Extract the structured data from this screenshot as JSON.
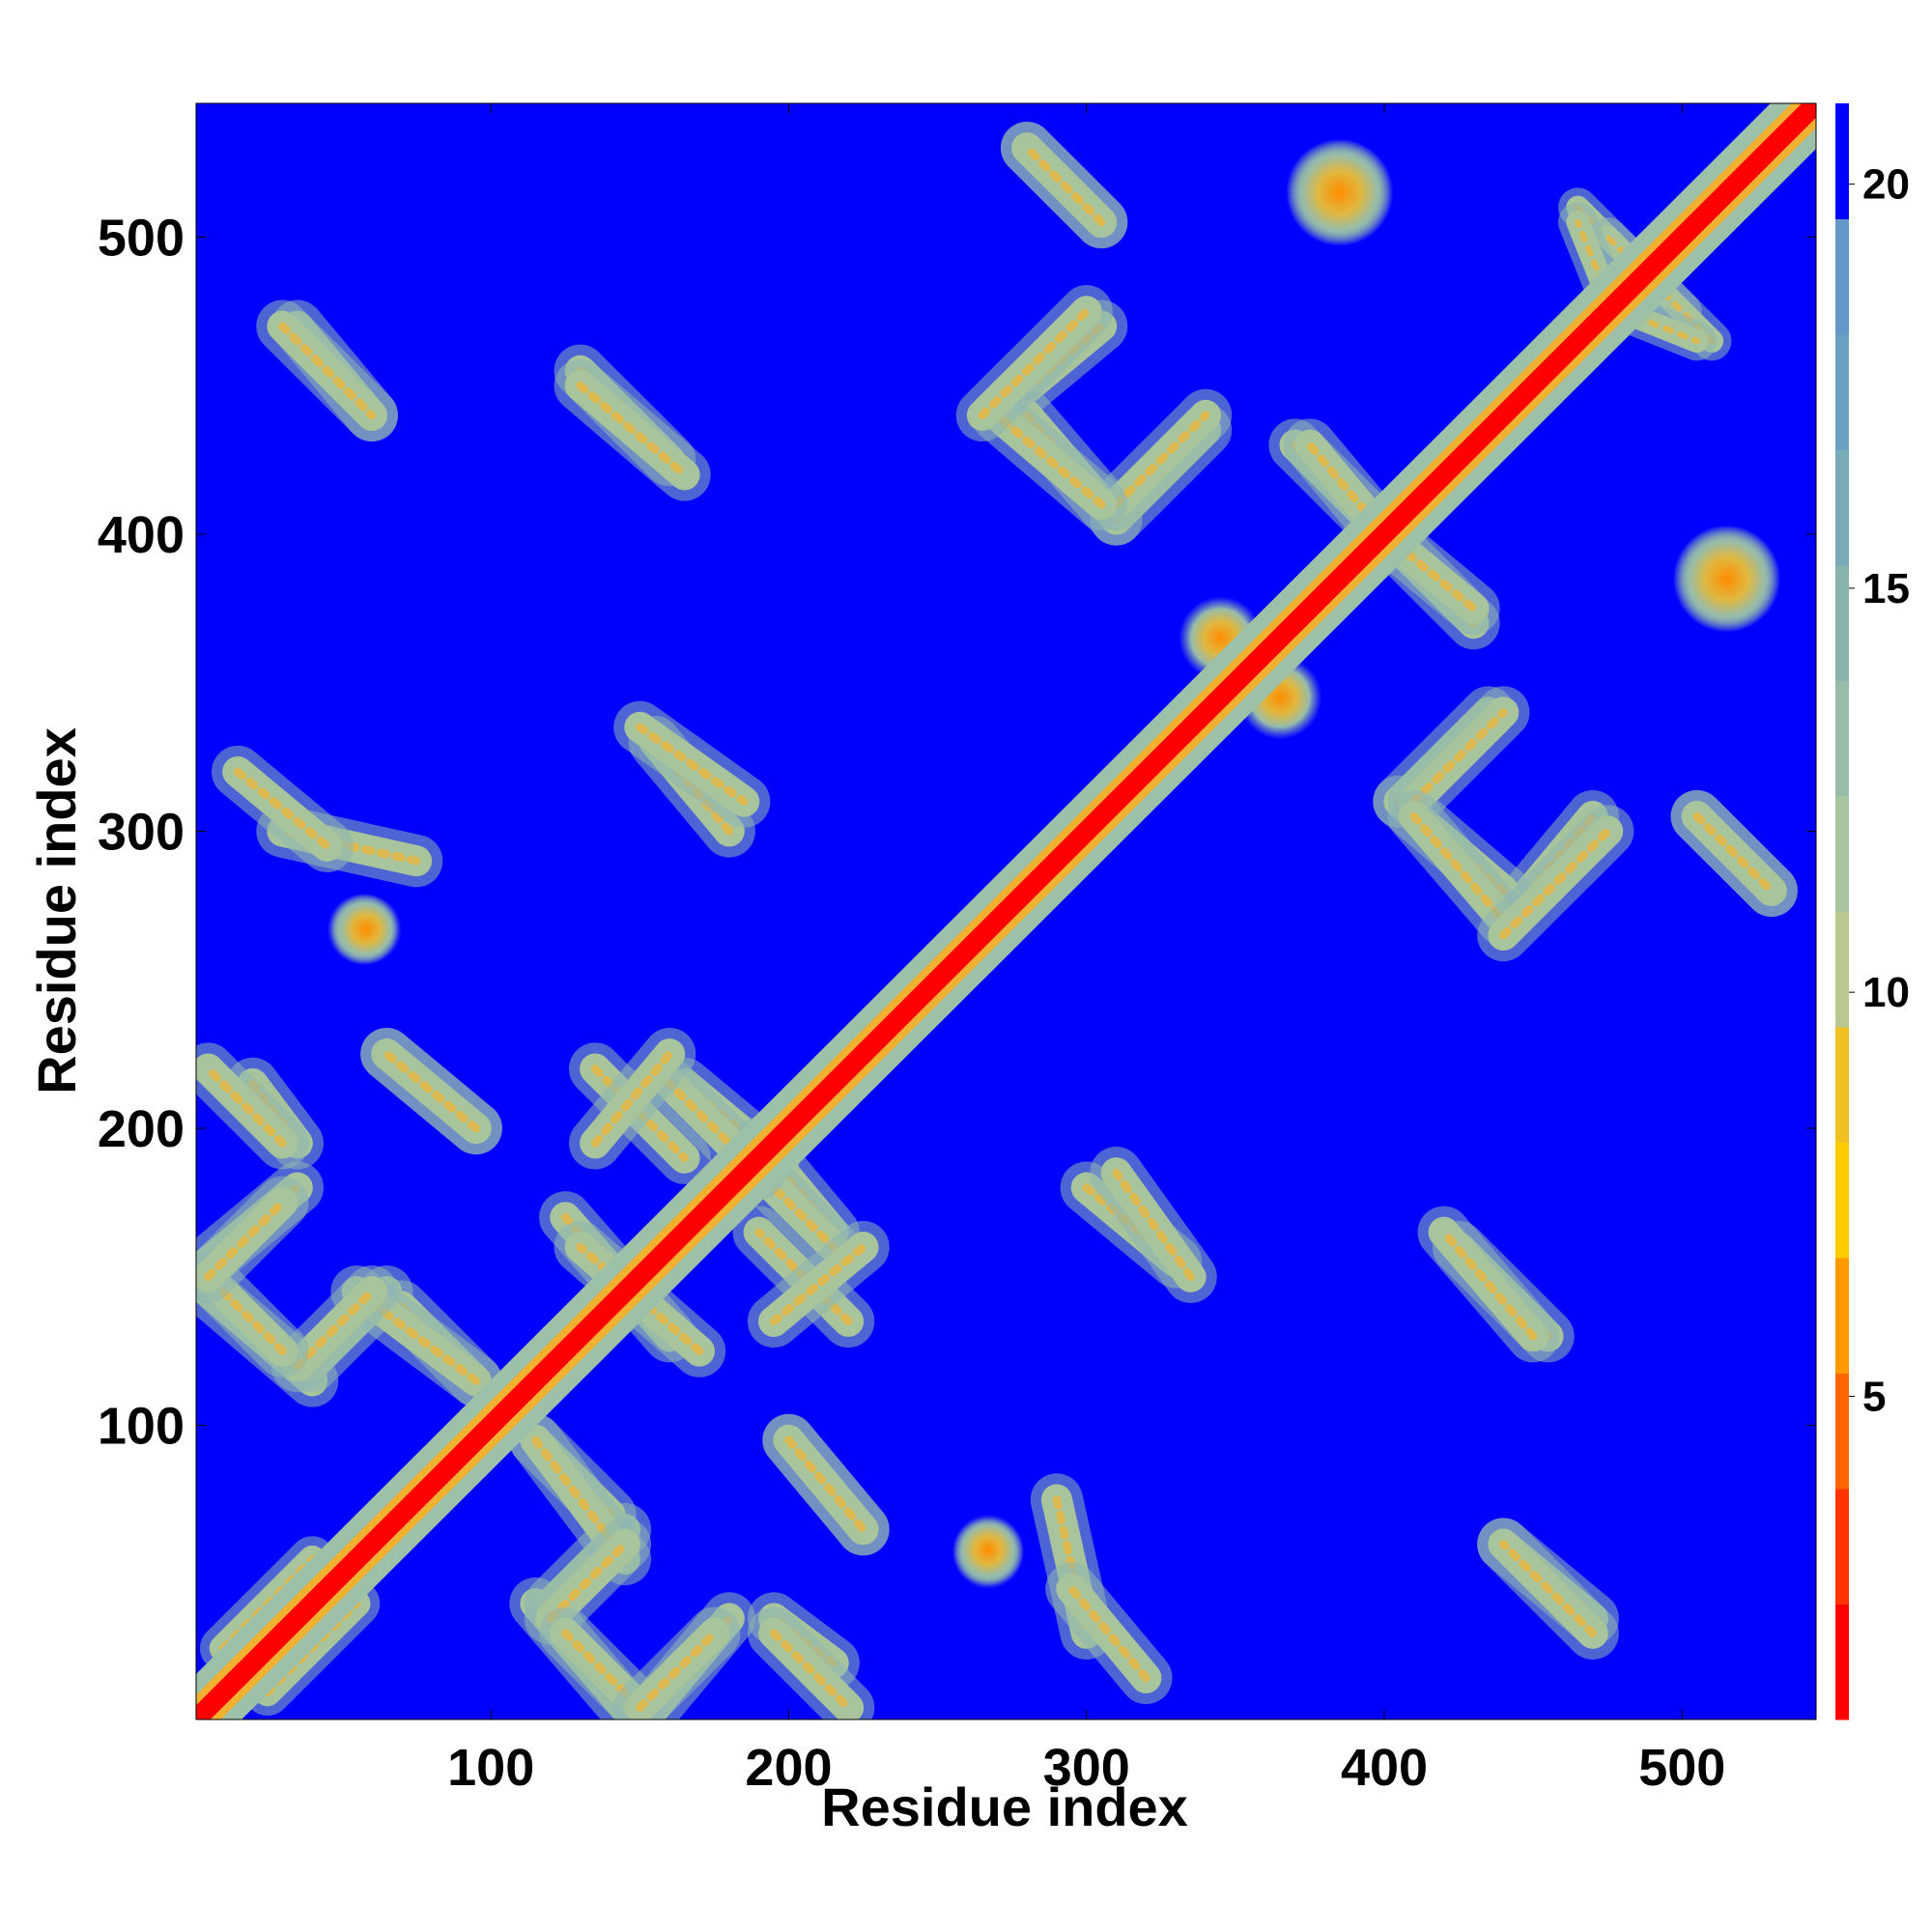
{
  "chart_data": {
    "type": "heatmap",
    "title": "",
    "xlabel": "Residue index",
    "ylabel": "Residue index",
    "xlim": [
      1,
      545
    ],
    "ylim": [
      1,
      545
    ],
    "x_ticks": [
      100,
      200,
      300,
      400,
      500
    ],
    "y_ticks": [
      100,
      200,
      300,
      400,
      500
    ],
    "colorbar": {
      "range": [
        1,
        21
      ],
      "ticks": [
        5,
        10,
        15,
        20
      ],
      "colors": [
        "#ff0000",
        "#ff3300",
        "#ff6600",
        "#ff9900",
        "#ffcc00",
        "#f0c020",
        "#b8c890",
        "#a8c4a0",
        "#98bca8",
        "#88b4b0",
        "#78aab8",
        "#6ca0c0",
        "#6496c8",
        "#0000ff"
      ]
    },
    "background_value": 21,
    "diagonal_band": {
      "value_center": 1,
      "value_edge": 12,
      "half_width": 9
    },
    "contact_features": [
      {
        "kind": "strand",
        "x": [
          20,
          35
        ],
        "y": [
          215,
          195
        ],
        "width": 8
      },
      {
        "kind": "strand",
        "x": [
          65,
          95
        ],
        "y": [
          225,
          200
        ],
        "width": 8
      },
      {
        "kind": "strand",
        "x": [
          5,
          35
        ],
        "y": [
          155,
          180
        ],
        "width": 8
      },
      {
        "kind": "strand",
        "x": [
          5,
          40
        ],
        "y": [
          145,
          115
        ],
        "width": 8
      },
      {
        "kind": "strand",
        "x": [
          40,
          65
        ],
        "y": [
          120,
          145
        ],
        "width": 8
      },
      {
        "kind": "strand",
        "x": [
          70,
          95
        ],
        "y": [
          140,
          115
        ],
        "width": 8
      },
      {
        "kind": "strand",
        "x": [
          5,
          35
        ],
        "y": [
          5,
          35
        ],
        "width": 8
      },
      {
        "kind": "strand",
        "x": [
          25,
          55
        ],
        "y": [
          10,
          40
        ],
        "width": 7
      },
      {
        "kind": "strand",
        "x": [
          115,
          145
        ],
        "y": [
          95,
          55
        ],
        "width": 8
      },
      {
        "kind": "strand",
        "x": [
          120,
          145
        ],
        "y": [
          35,
          60
        ],
        "width": 8
      },
      {
        "kind": "strand",
        "x": [
          125,
          150
        ],
        "y": [
          30,
          5
        ],
        "width": 8
      },
      {
        "kind": "strand",
        "x": [
          150,
          175
        ],
        "y": [
          5,
          30
        ],
        "width": 8
      },
      {
        "kind": "strand",
        "x": [
          200,
          225
        ],
        "y": [
          95,
          65
        ],
        "width": 8
      },
      {
        "kind": "strand",
        "x": [
          195,
          220
        ],
        "y": [
          30,
          5
        ],
        "width": 8
      },
      {
        "kind": "strand",
        "x": [
          125,
          160
        ],
        "y": [
          170,
          130
        ],
        "width": 8
      },
      {
        "kind": "strand",
        "x": [
          135,
          165
        ],
        "y": [
          220,
          190
        ],
        "width": 8
      },
      {
        "kind": "strand",
        "x": [
          165,
          195
        ],
        "y": [
          215,
          190
        ],
        "width": 8
      },
      {
        "kind": "strand",
        "x": [
          185,
          215
        ],
        "y": [
          190,
          160
        ],
        "width": 8
      },
      {
        "kind": "strand",
        "x": [
          195,
          225
        ],
        "y": [
          135,
          160
        ],
        "width": 8
      },
      {
        "kind": "strand",
        "x": [
          290,
          300
        ],
        "y": [
          75,
          30
        ],
        "width": 8
      },
      {
        "kind": "strand",
        "x": [
          300,
          330
        ],
        "y": [
          180,
          155
        ],
        "width": 8
      },
      {
        "kind": "strand",
        "x": [
          425,
          455
        ],
        "y": [
          160,
          130
        ],
        "width": 8
      },
      {
        "kind": "strand",
        "x": [
          440,
          470
        ],
        "y": [
          60,
          35
        ],
        "width": 8
      },
      {
        "kind": "strand",
        "x": [
          30,
          60
        ],
        "y": [
          470,
          440
        ],
        "width": 8
      },
      {
        "kind": "strand",
        "x": [
          130,
          165
        ],
        "y": [
          450,
          420
        ],
        "width": 8
      },
      {
        "kind": "strand",
        "x": [
          150,
          185
        ],
        "y": [
          335,
          310
        ],
        "width": 8
      },
      {
        "kind": "strand",
        "x": [
          15,
          45
        ],
        "y": [
          320,
          295
        ],
        "width": 8
      },
      {
        "kind": "strand",
        "x": [
          275,
          305
        ],
        "y": [
          445,
          470
        ],
        "width": 8
      },
      {
        "kind": "strand",
        "x": [
          280,
          310
        ],
        "y": [
          440,
          405
        ],
        "width": 8
      },
      {
        "kind": "strand",
        "x": [
          310,
          340
        ],
        "y": [
          405,
          435
        ],
        "width": 8
      },
      {
        "kind": "strand",
        "x": [
          280,
          305
        ],
        "y": [
          530,
          505
        ],
        "width": 8
      },
      {
        "kind": "strand",
        "x": [
          370,
          400
        ],
        "y": [
          430,
          400
        ],
        "width": 8
      },
      {
        "kind": "strand",
        "x": [
          400,
          430
        ],
        "y": [
          400,
          375
        ],
        "width": 8
      },
      {
        "kind": "strand",
        "x": [
          410,
          440
        ],
        "y": [
          310,
          340
        ],
        "width": 8
      },
      {
        "kind": "strand",
        "x": [
          410,
          440
        ],
        "y": [
          305,
          270
        ],
        "width": 8
      },
      {
        "kind": "strand",
        "x": [
          440,
          475
        ],
        "y": [
          265,
          300
        ],
        "width": 8
      },
      {
        "kind": "strand",
        "x": [
          505,
          530
        ],
        "y": [
          305,
          280
        ],
        "width": 8
      },
      {
        "kind": "strand",
        "x": [
          465,
          500
        ],
        "y": [
          510,
          475
        ],
        "width": 6
      },
      {
        "kind": "strand",
        "x": [
          480,
          505
        ],
        "y": [
          475,
          465
        ],
        "width": 6
      },
      {
        "kind": "blob",
        "x": 57,
        "y": 267,
        "r": 6
      },
      {
        "kind": "blob",
        "x": 267,
        "y": 58,
        "r": 6
      },
      {
        "kind": "blob",
        "x": 385,
        "y": 515,
        "r": 9
      },
      {
        "kind": "blob",
        "x": 515,
        "y": 385,
        "r": 9
      },
      {
        "kind": "blob",
        "x": 345,
        "y": 365,
        "r": 7
      }
    ]
  }
}
